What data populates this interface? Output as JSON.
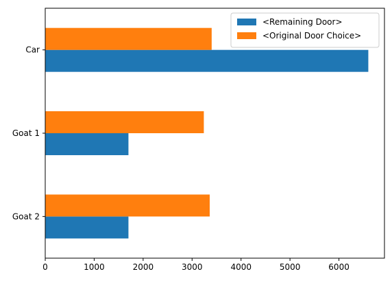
{
  "chart_data": {
    "type": "bar",
    "orientation": "horizontal",
    "categories": [
      "Car",
      "Goat 1",
      "Goat 2"
    ],
    "series": [
      {
        "name": "<Remaining Door>",
        "color": "#1f77b4",
        "values": [
          6600,
          1700,
          1700
        ]
      },
      {
        "name": "<Original Door Choice>",
        "color": "#ff7f0e",
        "values": [
          3400,
          3240,
          3360
        ]
      }
    ],
    "xlim": [
      0,
      6930
    ],
    "xticks": [
      0,
      1000,
      2000,
      3000,
      4000,
      5000,
      6000
    ],
    "title": "",
    "xlabel": "",
    "ylabel": "",
    "grid": false,
    "legend_position": "upper right"
  }
}
